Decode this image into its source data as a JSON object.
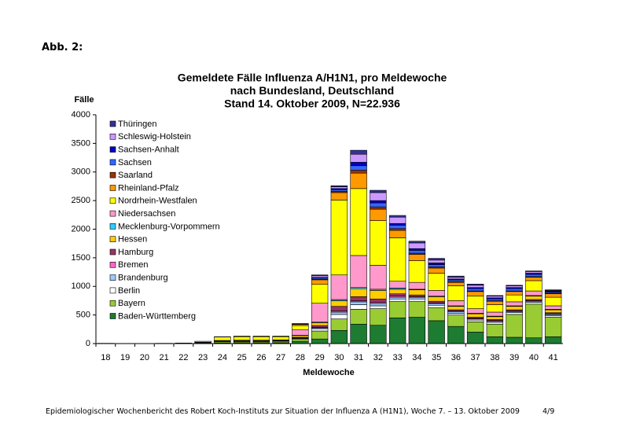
{
  "header": {
    "label": "Abb. 2:"
  },
  "chart_data": {
    "type": "stacked_bar",
    "title": [
      "Gemeldete Fälle Influenza A/H1N1, pro Meldewoche",
      "nach Bundesland, Deutschland",
      "Stand 14. Oktober 2009, N=22.936"
    ],
    "y_label": "Fälle",
    "x_label": "Meldewoche",
    "categories": [
      "18",
      "19",
      "20",
      "21",
      "22",
      "23",
      "24",
      "25",
      "26",
      "27",
      "28",
      "29",
      "30",
      "31",
      "32",
      "33",
      "34",
      "35",
      "36",
      "37",
      "38",
      "39",
      "40",
      "41"
    ],
    "ylim": [
      0,
      4000
    ],
    "yticks": [
      0,
      500,
      1000,
      1500,
      2000,
      2500,
      3000,
      3500,
      4000
    ],
    "grid": false,
    "legend": "upper-left",
    "series": [
      {
        "name": "Baden-Württemberg",
        "color": "#1e7b32",
        "values": [
          2,
          0,
          0,
          0,
          3,
          5,
          10,
          15,
          15,
          15,
          40,
          80,
          230,
          340,
          320,
          450,
          460,
          400,
          300,
          200,
          120,
          110,
          100,
          120
        ]
      },
      {
        "name": "Bayern",
        "color": "#99cc33",
        "values": [
          0,
          0,
          0,
          2,
          2,
          10,
          20,
          20,
          20,
          25,
          40,
          140,
          200,
          260,
          290,
          290,
          280,
          230,
          200,
          180,
          220,
          400,
          590,
          340
        ]
      },
      {
        "name": "Berlin",
        "color": "#ffffff",
        "values": [
          0,
          0,
          0,
          0,
          0,
          0,
          5,
          5,
          5,
          5,
          10,
          40,
          80,
          80,
          50,
          40,
          40,
          40,
          30,
          30,
          30,
          30,
          30,
          30
        ]
      },
      {
        "name": "Brandenburg",
        "color": "#99ccff",
        "values": [
          0,
          0,
          0,
          0,
          0,
          0,
          0,
          0,
          0,
          0,
          5,
          15,
          40,
          50,
          40,
          30,
          30,
          30,
          30,
          20,
          20,
          20,
          20,
          20
        ]
      },
      {
        "name": "Bremen",
        "color": "#ff66cc",
        "values": [
          0,
          0,
          0,
          0,
          0,
          0,
          0,
          0,
          0,
          0,
          5,
          10,
          20,
          20,
          20,
          20,
          10,
          10,
          10,
          10,
          10,
          10,
          10,
          10
        ]
      },
      {
        "name": "Hamburg",
        "color": "#993366",
        "values": [
          0,
          0,
          0,
          0,
          0,
          0,
          0,
          0,
          0,
          0,
          10,
          30,
          80,
          70,
          60,
          40,
          30,
          30,
          20,
          20,
          20,
          20,
          20,
          20
        ]
      },
      {
        "name": "Hessen",
        "color": "#ffcc00",
        "values": [
          0,
          0,
          0,
          0,
          0,
          5,
          10,
          10,
          10,
          10,
          30,
          50,
          100,
          140,
          150,
          80,
          90,
          80,
          60,
          60,
          50,
          60,
          60,
          50
        ]
      },
      {
        "name": "Mecklenburg-Vorpommern",
        "color": "#33ccff",
        "values": [
          0,
          0,
          0,
          0,
          0,
          0,
          0,
          0,
          0,
          0,
          5,
          10,
          20,
          20,
          20,
          20,
          10,
          10,
          10,
          10,
          10,
          10,
          10,
          10
        ]
      },
      {
        "name": "Niedersachsen",
        "color": "#ff99cc",
        "values": [
          0,
          0,
          0,
          0,
          0,
          5,
          10,
          10,
          10,
          10,
          100,
          330,
          430,
          560,
          420,
          120,
          120,
          100,
          90,
          80,
          70,
          70,
          80,
          60
        ]
      },
      {
        "name": "Nordrhein-Westfalen",
        "color": "#ffff00",
        "values": [
          3,
          3,
          2,
          3,
          5,
          15,
          60,
          60,
          60,
          55,
          70,
          330,
          1310,
          1170,
          780,
          760,
          380,
          300,
          260,
          220,
          130,
          120,
          180,
          150
        ]
      },
      {
        "name": "Rheinland-Pfalz",
        "color": "#ff9900",
        "values": [
          0,
          0,
          0,
          0,
          0,
          0,
          5,
          5,
          5,
          5,
          20,
          80,
          130,
          270,
          200,
          130,
          110,
          90,
          60,
          80,
          60,
          60,
          60,
          60
        ]
      },
      {
        "name": "Saarland",
        "color": "#993300",
        "values": [
          0,
          0,
          0,
          0,
          0,
          0,
          0,
          0,
          0,
          0,
          5,
          10,
          20,
          50,
          40,
          30,
          20,
          20,
          10,
          10,
          10,
          10,
          10,
          10
        ]
      },
      {
        "name": "Sachsen",
        "color": "#3366ff",
        "values": [
          0,
          0,
          0,
          0,
          0,
          0,
          0,
          0,
          0,
          0,
          5,
          20,
          30,
          80,
          70,
          60,
          50,
          40,
          30,
          40,
          30,
          40,
          40,
          20
        ]
      },
      {
        "name": "Sachsen-Anhalt",
        "color": "#0000cc",
        "values": [
          0,
          0,
          0,
          0,
          0,
          0,
          0,
          0,
          0,
          0,
          0,
          10,
          20,
          60,
          40,
          30,
          30,
          30,
          20,
          20,
          20,
          20,
          20,
          20
        ]
      },
      {
        "name": "Schleswig-Holstein",
        "color": "#cc99ff",
        "values": [
          0,
          0,
          0,
          0,
          0,
          0,
          0,
          5,
          5,
          5,
          5,
          30,
          30,
          140,
          140,
          110,
          100,
          50,
          30,
          40,
          30,
          30,
          30,
          10
        ]
      },
      {
        "name": "Thüringen",
        "color": "#333399",
        "values": [
          0,
          0,
          0,
          0,
          0,
          0,
          0,
          0,
          0,
          0,
          0,
          15,
          20,
          70,
          40,
          30,
          30,
          30,
          20,
          20,
          10,
          10,
          10,
          10
        ]
      }
    ]
  },
  "footer": {
    "text": "Epidemiologischer Wochenbericht des Robert Koch-Instituts zur Situation der Influenza A (H1N1), Woche 7. – 13. Oktober 2009",
    "page": "4/9"
  }
}
